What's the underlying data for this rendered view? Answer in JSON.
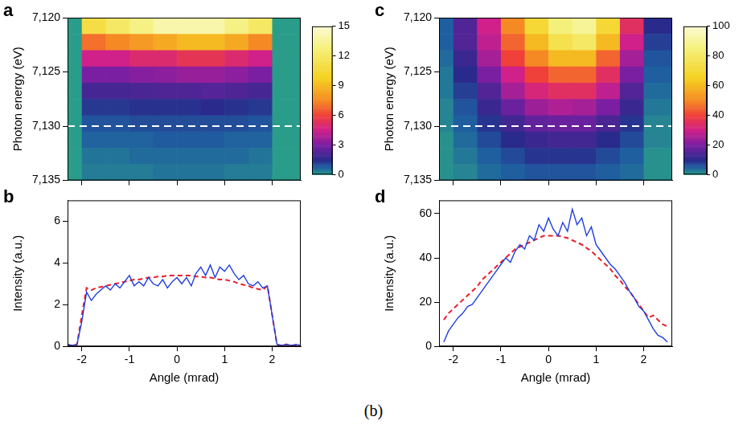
{
  "chart_data": [
    {
      "type": "heatmap",
      "panel_label": "a",
      "y_label": "Photon energy (eV)",
      "xlim": [
        -2.3,
        2.6
      ],
      "xticks": [
        -2,
        -1,
        0,
        1,
        2
      ],
      "ylim": [
        7135,
        7120
      ],
      "yticks": [
        {
          "value": 7120,
          "label": "7,120"
        },
        {
          "value": 7125,
          "label": "7,125"
        },
        {
          "value": 7130,
          "label": "7,130"
        },
        {
          "value": 7135,
          "label": "7,135"
        }
      ],
      "tick_labels": "y",
      "grid": false,
      "x_edges": [
        -2.3,
        -2,
        -1.5,
        -1,
        -0.5,
        0,
        0.5,
        1,
        1.5,
        2,
        2.6
      ],
      "y_edges": [
        7120,
        7121.5,
        7123,
        7124.5,
        7126,
        7127.5,
        7129,
        7130.5,
        7132,
        7133.5,
        7135
      ],
      "cells": [
        [
          0,
          11,
          12,
          13,
          14,
          14,
          14,
          13,
          12,
          0
        ],
        [
          0,
          7,
          7.5,
          8,
          8.5,
          9,
          9,
          8.5,
          7.5,
          0
        ],
        [
          0,
          4.5,
          4.5,
          5,
          5,
          5.5,
          5.5,
          5,
          4.5,
          0
        ],
        [
          0,
          3,
          3,
          3.2,
          3.3,
          3.5,
          3.5,
          3.3,
          3,
          0
        ],
        [
          0,
          2,
          2,
          2.1,
          2.2,
          2.2,
          2.3,
          2.2,
          2,
          0
        ],
        [
          0,
          1.3,
          1.3,
          1.4,
          1.4,
          1.4,
          1.5,
          1.4,
          1.3,
          0
        ],
        [
          0,
          0.9,
          0.9,
          1,
          1,
          1,
          1,
          1,
          0.9,
          0
        ],
        [
          0,
          0.7,
          0.7,
          0.7,
          0.8,
          0.8,
          0.8,
          0.7,
          0.7,
          0
        ],
        [
          0,
          0.5,
          0.5,
          0.6,
          0.6,
          0.6,
          0.6,
          0.6,
          0.5,
          0
        ],
        [
          0,
          0.4,
          0.4,
          0.4,
          0.5,
          0.5,
          0.5,
          0.4,
          0.4,
          0
        ]
      ],
      "colorbar": {
        "range": [
          0,
          15
        ],
        "ticks": [
          0,
          3,
          6,
          9,
          12,
          15
        ]
      },
      "reference_line": {
        "value": 7130,
        "color": "#ffffff",
        "line_style": "dashed"
      }
    },
    {
      "type": "line",
      "panel_label": "b",
      "x_label": "Angle (mrad)",
      "y_label": "Intensity (a.u.)",
      "xlim": [
        -2.3,
        2.6
      ],
      "xticks": [
        -2,
        -1,
        0,
        1,
        2
      ],
      "ylim": [
        0,
        7
      ],
      "yticks": [
        0,
        2,
        4,
        6
      ],
      "grid": false,
      "x": [
        -2.3,
        -2.2,
        -2.1,
        -2.0,
        -1.9,
        -1.8,
        -1.7,
        -1.6,
        -1.5,
        -1.4,
        -1.3,
        -1.2,
        -1.1,
        -1.0,
        -0.9,
        -0.8,
        -0.7,
        -0.6,
        -0.5,
        -0.4,
        -0.3,
        -0.2,
        -0.1,
        0,
        0.1,
        0.2,
        0.3,
        0.4,
        0.5,
        0.6,
        0.7,
        0.8,
        0.9,
        1.0,
        1.1,
        1.2,
        1.3,
        1.4,
        1.5,
        1.6,
        1.7,
        1.8,
        1.9,
        2.0,
        2.1,
        2.2,
        2.3,
        2.4,
        2.5,
        2.6
      ],
      "series": [
        {
          "color": "#1f3fe0",
          "line_style": "solid",
          "values": [
            0.1,
            0.05,
            0.1,
            1.2,
            2.6,
            2.2,
            2.5,
            2.7,
            2.9,
            2.7,
            3.0,
            2.8,
            3.1,
            3.4,
            2.9,
            3.1,
            2.9,
            3.3,
            3.0,
            2.9,
            3.2,
            2.8,
            3.1,
            3.3,
            3.0,
            3.3,
            2.9,
            3.5,
            3.8,
            3.4,
            3.9,
            3.3,
            3.8,
            3.6,
            3.9,
            3.5,
            3.2,
            3.4,
            3.0,
            2.9,
            3.1,
            2.8,
            2.9,
            1.5,
            0.1,
            0.05,
            0.1,
            0.05,
            0.1,
            0.05
          ]
        },
        {
          "color": "#e8202a",
          "line_style": "dashed",
          "values": [
            0.1,
            0,
            0.1,
            1.5,
            2.8,
            2.7,
            2.8,
            2.85,
            2.9,
            2.95,
            3.0,
            3.05,
            3.1,
            3.15,
            3.2,
            3.2,
            3.25,
            3.3,
            3.3,
            3.35,
            3.35,
            3.4,
            3.4,
            3.4,
            3.4,
            3.4,
            3.4,
            3.35,
            3.35,
            3.3,
            3.3,
            3.25,
            3.2,
            3.2,
            3.15,
            3.1,
            3.0,
            2.95,
            2.9,
            2.8,
            2.75,
            2.7,
            2.9,
            1.5,
            0.1,
            0,
            0.1,
            0,
            0.05,
            0
          ]
        }
      ]
    },
    {
      "type": "heatmap",
      "panel_label": "c",
      "y_label": "Photon energy (eV)",
      "xlim": [
        -2.3,
        2.6
      ],
      "xticks": [
        -2,
        -1,
        0,
        1,
        2
      ],
      "ylim": [
        7135,
        7120
      ],
      "yticks": [
        {
          "value": 7120,
          "label": "7,120"
        },
        {
          "value": 7125,
          "label": "7,125"
        },
        {
          "value": 7130,
          "label": "7,130"
        },
        {
          "value": 7135,
          "label": "7,135"
        }
      ],
      "tick_labels": "y",
      "grid": false,
      "x_edges": [
        -2.3,
        -2,
        -1.5,
        -1,
        -0.5,
        0,
        0.5,
        1,
        1.5,
        2,
        2.6
      ],
      "y_edges": [
        7120,
        7121.5,
        7123,
        7124.5,
        7126,
        7127.5,
        7129,
        7130.5,
        7132,
        7133.5,
        7135
      ],
      "cells": [
        [
          5,
          15,
          30,
          50,
          70,
          85,
          90,
          70,
          35,
          10
        ],
        [
          5,
          15,
          28,
          45,
          60,
          75,
          80,
          60,
          30,
          8
        ],
        [
          4,
          12,
          25,
          40,
          50,
          60,
          60,
          45,
          25,
          6
        ],
        [
          3,
          10,
          20,
          30,
          40,
          45,
          45,
          35,
          20,
          5
        ],
        [
          3,
          8,
          15,
          25,
          32,
          35,
          35,
          28,
          15,
          4
        ],
        [
          2,
          6,
          12,
          18,
          24,
          26,
          25,
          20,
          12,
          3
        ],
        [
          2,
          5,
          9,
          13,
          17,
          18,
          18,
          14,
          9,
          2
        ],
        [
          1,
          4,
          7,
          10,
          12,
          13,
          13,
          10,
          7,
          2
        ],
        [
          1,
          3,
          5,
          7,
          9,
          9,
          9,
          7,
          5,
          1
        ],
        [
          1,
          2,
          4,
          5,
          6,
          6,
          6,
          5,
          4,
          1
        ]
      ],
      "colorbar": {
        "range": [
          0,
          100
        ],
        "ticks": [
          0,
          20,
          40,
          60,
          80,
          100
        ]
      },
      "reference_line": {
        "value": 7130,
        "color": "#ffffff",
        "line_style": "dashed"
      }
    },
    {
      "type": "line",
      "panel_label": "d",
      "x_label": "Angle (mrad)",
      "y_label": "Intensity (a.u.)",
      "xlim": [
        -2.3,
        2.6
      ],
      "xticks": [
        -2,
        -1,
        0,
        1,
        2
      ],
      "ylim": [
        0,
        66
      ],
      "yticks": [
        0,
        20,
        40,
        60
      ],
      "grid": false,
      "x": [
        -2.3,
        -2.2,
        -2.1,
        -2.0,
        -1.9,
        -1.8,
        -1.7,
        -1.6,
        -1.5,
        -1.4,
        -1.3,
        -1.2,
        -1.1,
        -1.0,
        -0.9,
        -0.8,
        -0.7,
        -0.6,
        -0.5,
        -0.4,
        -0.3,
        -0.2,
        -0.1,
        0,
        0.1,
        0.2,
        0.3,
        0.4,
        0.5,
        0.6,
        0.7,
        0.8,
        0.9,
        1.0,
        1.1,
        1.2,
        1.3,
        1.4,
        1.5,
        1.6,
        1.7,
        1.8,
        1.9,
        2.0,
        2.1,
        2.2,
        2.3,
        2.4,
        2.5,
        2.6
      ],
      "series": [
        {
          "color": "#1f3fe0",
          "line_style": "solid",
          "values": [
            null,
            2,
            7,
            10,
            13,
            15,
            18,
            19,
            22,
            25,
            28,
            31,
            34,
            37,
            40,
            38,
            43,
            46,
            44,
            50,
            48,
            55,
            52,
            58,
            53,
            50,
            56,
            52,
            62,
            55,
            58,
            50,
            54,
            46,
            43,
            40,
            37,
            35,
            32,
            29,
            25,
            22,
            18,
            16,
            12,
            8,
            5,
            4,
            2,
            null
          ]
        },
        {
          "color": "#e8202a",
          "line_style": "dashed",
          "values": [
            null,
            12,
            15,
            17,
            19,
            21,
            23,
            25,
            27,
            30,
            32,
            34,
            36,
            38,
            40,
            42,
            44,
            45,
            46,
            47,
            48,
            49,
            50,
            50,
            50,
            50,
            49.5,
            49,
            48,
            47,
            46,
            44.5,
            43,
            41,
            39,
            37,
            35,
            32,
            30,
            27,
            25,
            22,
            19,
            16,
            13,
            14,
            12,
            10,
            9,
            null
          ]
        }
      ]
    }
  ],
  "caption": "(b)"
}
